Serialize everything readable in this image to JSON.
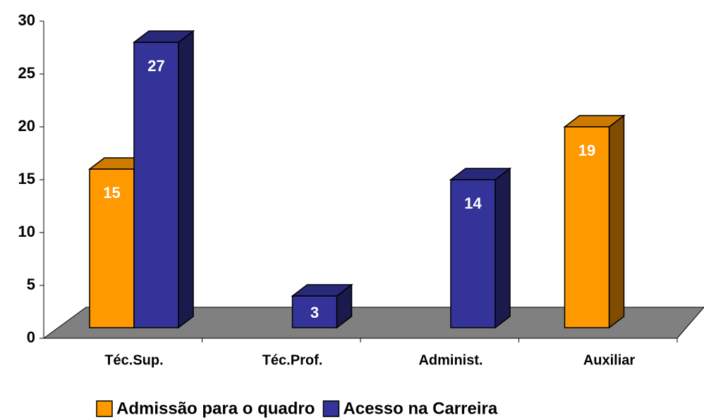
{
  "chart_data": {
    "type": "bar3d",
    "categories": [
      "Téc.Sup.",
      "Téc.Prof.",
      "Administ.",
      "Auxiliar"
    ],
    "series": [
      {
        "name": "Admissão para o quadro",
        "color": "#ff9900",
        "values": [
          15,
          null,
          null,
          19
        ]
      },
      {
        "name": "Acesso na Carreira",
        "color": "#333399",
        "values": [
          27,
          3,
          14,
          null
        ]
      }
    ],
    "ylim": [
      0,
      30
    ],
    "yticks": [
      0,
      5,
      10,
      15,
      20,
      25,
      30
    ],
    "legend": "bottom"
  }
}
